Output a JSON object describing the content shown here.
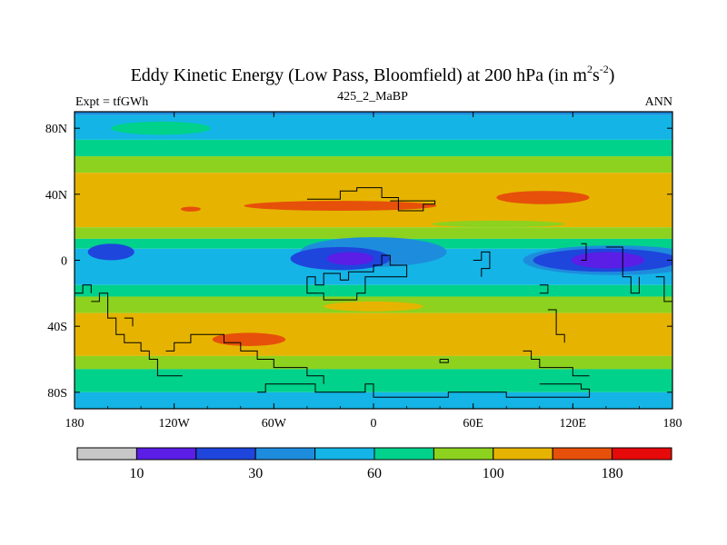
{
  "chart_data": {
    "type": "heatmap",
    "title_main": "Eddy Kinetic Energy (Low Pass, Bloomfield) at 200 hPa (in m",
    "title_sup1": "2",
    "title_mid": "s",
    "title_sup2": "-2",
    "title_end": ")",
    "subtitle_left": "Expt = tfGWh",
    "subtitle_center": "425_2_MaBP",
    "subtitle_right": "ANN",
    "x_range": [
      -180,
      180
    ],
    "y_range": [
      -90,
      90
    ],
    "x_ticks": [
      {
        "value": -180,
        "label": "180"
      },
      {
        "value": -120,
        "label": "120W"
      },
      {
        "value": -60,
        "label": "60W"
      },
      {
        "value": 0,
        "label": "0"
      },
      {
        "value": 60,
        "label": "60E"
      },
      {
        "value": 120,
        "label": "120E"
      },
      {
        "value": 180,
        "label": "180"
      }
    ],
    "y_ticks": [
      {
        "value": 80,
        "label": "80N"
      },
      {
        "value": 40,
        "label": "40N"
      },
      {
        "value": 0,
        "label": "0"
      },
      {
        "value": -40,
        "label": "40S"
      },
      {
        "value": -80,
        "label": "80S"
      }
    ],
    "colorbar_colors": [
      "#c8c8c8",
      "#5a1ee6",
      "#1e46dc",
      "#1e8cdc",
      "#14b4e6",
      "#00d28c",
      "#8cd21e",
      "#e6b400",
      "#e6500a",
      "#e60a0a"
    ],
    "colorbar_labels": [
      {
        "value": 10,
        "label": "10"
      },
      {
        "value": 30,
        "label": "30"
      },
      {
        "value": 60,
        "label": "60"
      },
      {
        "value": 100,
        "label": "100"
      },
      {
        "value": 180,
        "label": "180"
      }
    ],
    "colorbar_label_boundaries": [
      1,
      3,
      5,
      7,
      9
    ],
    "zonal_bands": [
      {
        "lat_top": 90,
        "lat_bottom": 88,
        "color": "#1e8cdc"
      },
      {
        "lat_top": 88,
        "lat_bottom": 73,
        "color": "#14b4e6"
      },
      {
        "lat_top": 73,
        "lat_bottom": 63,
        "color": "#00d28c"
      },
      {
        "lat_top": 63,
        "lat_bottom": 53,
        "color": "#8cd21e"
      },
      {
        "lat_top": 53,
        "lat_bottom": 20,
        "color": "#e6b400"
      },
      {
        "lat_top": 20,
        "lat_bottom": 13,
        "color": "#8cd21e"
      },
      {
        "lat_top": 13,
        "lat_bottom": 7,
        "color": "#00d28c"
      },
      {
        "lat_top": 7,
        "lat_bottom": -15,
        "color": "#14b4e6"
      },
      {
        "lat_top": -15,
        "lat_bottom": -22,
        "color": "#00d28c"
      },
      {
        "lat_top": -22,
        "lat_bottom": -32,
        "color": "#8cd21e"
      },
      {
        "lat_top": -32,
        "lat_bottom": -58,
        "color": "#e6b400"
      },
      {
        "lat_top": -58,
        "lat_bottom": -66,
        "color": "#8cd21e"
      },
      {
        "lat_top": -66,
        "lat_bottom": -80,
        "color": "#00d28c"
      },
      {
        "lat_top": -80,
        "lat_bottom": -90,
        "color": "#14b4e6"
      }
    ],
    "patches": [
      {
        "lon": -158,
        "lat": 5,
        "rlon": 14,
        "rlat": 5,
        "color": "#1e46dc"
      },
      {
        "lon": 0,
        "lat": 5,
        "rlon": 44,
        "rlat": 9,
        "color": "#1e8cdc"
      },
      {
        "lon": -20,
        "lat": 1,
        "rlon": 30,
        "rlat": 7,
        "color": "#1e46dc"
      },
      {
        "lon": -14,
        "lat": 1,
        "rlon": 14,
        "rlat": 4,
        "color": "#5a1ee6"
      },
      {
        "lon": 145,
        "lat": 0,
        "rlon": 55,
        "rlat": 9,
        "color": "#1e8cdc"
      },
      {
        "lon": 140,
        "lat": 0,
        "rlon": 44,
        "rlat": 7,
        "color": "#1e46dc"
      },
      {
        "lon": 141,
        "lat": 0,
        "rlon": 22,
        "rlat": 5,
        "color": "#5a1ee6"
      },
      {
        "lon": -110,
        "lat": 31,
        "rlon": 6,
        "rlat": 1.5,
        "color": "#e6500a"
      },
      {
        "lon": -20,
        "lat": 33,
        "rlon": 58,
        "rlat": 3,
        "color": "#e6500a"
      },
      {
        "lon": 102,
        "lat": 38,
        "rlon": 28,
        "rlat": 4,
        "color": "#e6500a"
      },
      {
        "lon": -75,
        "lat": -48,
        "rlon": 22,
        "rlat": 4,
        "color": "#e6500a"
      },
      {
        "lon": 0,
        "lat": -28,
        "rlon": 30,
        "rlat": 3,
        "color": "#e6b400"
      },
      {
        "lon": -128,
        "lat": 80,
        "rlon": 30,
        "rlat": 4,
        "color": "#00d28c"
      },
      {
        "lon": 75,
        "lat": 22,
        "rlon": 40,
        "rlat": 2,
        "color": "#8cd21e"
      }
    ],
    "coastlines": [
      [
        [
          -40,
          37
        ],
        [
          -20,
          37
        ],
        [
          -20,
          42
        ],
        [
          -10,
          42
        ],
        [
          -10,
          44
        ],
        [
          5,
          44
        ],
        [
          5,
          38
        ],
        [
          15,
          38
        ],
        [
          15,
          30
        ],
        [
          30,
          30
        ],
        [
          30,
          34
        ],
        [
          37,
          34
        ],
        [
          37,
          36
        ],
        [
          10,
          36
        ]
      ],
      [
        [
          -40,
          -10
        ],
        [
          -35,
          -10
        ],
        [
          -35,
          -15
        ],
        [
          -30,
          -15
        ],
        [
          -30,
          -8
        ],
        [
          -20,
          -8
        ],
        [
          -20,
          -12
        ],
        [
          -15,
          -12
        ],
        [
          -15,
          -7
        ],
        [
          0,
          -7
        ],
        [
          0,
          -3
        ],
        [
          5,
          -3
        ],
        [
          5,
          3
        ],
        [
          10,
          3
        ],
        [
          10,
          -3
        ],
        [
          20,
          -3
        ],
        [
          20,
          -10
        ],
        [
          -5,
          -10
        ],
        [
          -5,
          -20
        ],
        [
          -10,
          -20
        ],
        [
          -10,
          -24
        ],
        [
          -30,
          -24
        ],
        [
          -30,
          -20
        ],
        [
          -40,
          -20
        ],
        [
          -40,
          -10
        ]
      ],
      [
        [
          -170,
          -25
        ],
        [
          -165,
          -25
        ],
        [
          -165,
          -20
        ],
        [
          -160,
          -20
        ],
        [
          -160,
          -35
        ],
        [
          -155,
          -35
        ],
        [
          -155,
          -45
        ],
        [
          -150,
          -45
        ],
        [
          -150,
          -50
        ],
        [
          -140,
          -50
        ],
        [
          -140,
          -55
        ],
        [
          -135,
          -55
        ],
        [
          -135,
          -60
        ],
        [
          -130,
          -60
        ],
        [
          -130,
          -70
        ],
        [
          -115,
          -70
        ]
      ],
      [
        [
          -180,
          -20
        ],
        [
          -175,
          -20
        ],
        [
          -175,
          -15
        ],
        [
          -170,
          -15
        ],
        [
          -170,
          -20
        ]
      ],
      [
        [
          -150,
          -35
        ],
        [
          -145,
          -35
        ],
        [
          -145,
          -40
        ]
      ],
      [
        [
          -125,
          -55
        ],
        [
          -120,
          -55
        ],
        [
          -120,
          -50
        ],
        [
          -110,
          -50
        ],
        [
          -110,
          -45
        ],
        [
          -90,
          -45
        ],
        [
          -90,
          -50
        ],
        [
          -80,
          -50
        ],
        [
          -80,
          -55
        ],
        [
          -70,
          -55
        ],
        [
          -70,
          -60
        ],
        [
          -60,
          -60
        ],
        [
          -60,
          -65
        ],
        [
          -40,
          -65
        ],
        [
          -40,
          -70
        ],
        [
          -30,
          -70
        ],
        [
          -30,
          -75
        ]
      ],
      [
        [
          -70,
          -80
        ],
        [
          -65,
          -80
        ],
        [
          -65,
          -75
        ],
        [
          -35,
          -75
        ],
        [
          -35,
          -80
        ],
        [
          -5,
          -80
        ],
        [
          -5,
          -75
        ],
        [
          0,
          -75
        ],
        [
          0,
          -83
        ],
        [
          45,
          -83
        ],
        [
          45,
          -80
        ],
        [
          80,
          -80
        ],
        [
          80,
          -83
        ],
        [
          130,
          -83
        ],
        [
          130,
          -78
        ],
        [
          125,
          -78
        ],
        [
          125,
          -75
        ],
        [
          100,
          -75
        ]
      ],
      [
        [
          40,
          -60
        ],
        [
          45,
          -60
        ],
        [
          45,
          -62
        ],
        [
          40,
          -62
        ],
        [
          40,
          -60
        ]
      ],
      [
        [
          90,
          -55
        ],
        [
          95,
          -55
        ],
        [
          95,
          -60
        ],
        [
          100,
          -60
        ],
        [
          100,
          -65
        ],
        [
          120,
          -65
        ],
        [
          120,
          -70
        ],
        [
          130,
          -70
        ]
      ],
      [
        [
          105,
          -30
        ],
        [
          110,
          -30
        ],
        [
          110,
          -45
        ],
        [
          115,
          -45
        ],
        [
          115,
          -50
        ]
      ],
      [
        [
          60,
          0
        ],
        [
          65,
          0
        ],
        [
          65,
          5
        ],
        [
          70,
          5
        ],
        [
          70,
          -5
        ],
        [
          65,
          -5
        ],
        [
          65,
          -10
        ]
      ],
      [
        [
          100,
          -15
        ],
        [
          105,
          -15
        ],
        [
          105,
          -20
        ],
        [
          100,
          -20
        ]
      ],
      [
        [
          125,
          10
        ],
        [
          128,
          10
        ],
        [
          128,
          0
        ],
        [
          125,
          0
        ]
      ],
      [
        [
          140,
          8
        ],
        [
          150,
          8
        ],
        [
          150,
          -10
        ],
        [
          155,
          -10
        ],
        [
          155,
          -20
        ],
        [
          160,
          -20
        ],
        [
          160,
          -10
        ]
      ],
      [
        [
          170,
          -10
        ],
        [
          175,
          -10
        ],
        [
          175,
          -25
        ],
        [
          180,
          -25
        ]
      ]
    ]
  }
}
